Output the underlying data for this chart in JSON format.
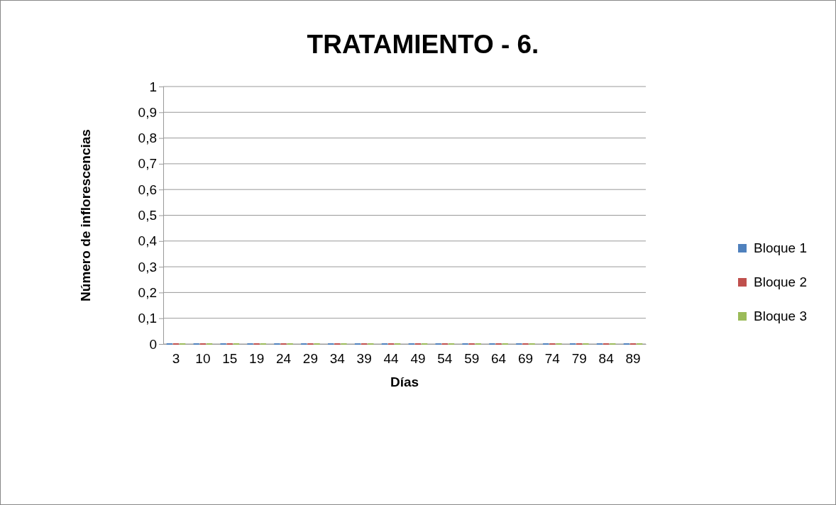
{
  "chart_data": {
    "type": "bar",
    "title": "TRATAMIENTO - 6.",
    "xlabel": "Días",
    "ylabel": "Número de inflorescencias",
    "categories": [
      "3",
      "10",
      "15",
      "19",
      "24",
      "29",
      "34",
      "39",
      "44",
      "49",
      "54",
      "59",
      "64",
      "69",
      "74",
      "79",
      "84",
      "89"
    ],
    "series": [
      {
        "name": "Bloque 1",
        "color": "#4f81bd",
        "values": [
          0,
          0,
          0,
          0,
          0,
          0,
          0,
          0,
          0,
          0,
          0,
          0,
          0,
          0,
          0,
          0,
          0,
          0
        ]
      },
      {
        "name": "Bloque 2",
        "color": "#c0504d",
        "values": [
          0,
          0,
          0,
          0,
          0,
          0,
          0,
          0,
          0,
          0,
          0,
          0,
          0,
          0,
          0,
          0,
          0,
          0
        ]
      },
      {
        "name": "Bloque 3",
        "color": "#9bbb59",
        "values": [
          0,
          0,
          0,
          0,
          0,
          0,
          0,
          0,
          0,
          0,
          0,
          0,
          0,
          0,
          0,
          0,
          0,
          0
        ]
      }
    ],
    "ylim": [
      0,
      1
    ],
    "yticks": [
      0,
      {
        "value": 0.1,
        "label": "0,1"
      },
      {
        "value": 0.2,
        "label": "0,2"
      },
      {
        "value": 0.3,
        "label": "0,3"
      },
      {
        "value": 0.4,
        "label": "0,4"
      },
      {
        "value": 0.5,
        "label": "0,5"
      },
      {
        "value": 0.6,
        "label": "0,6"
      },
      {
        "value": 0.7,
        "label": "0,7"
      },
      {
        "value": 0.8,
        "label": "0,8"
      },
      {
        "value": 0.9,
        "label": "0,9"
      },
      1
    ],
    "grid": "y",
    "legend": "right"
  }
}
